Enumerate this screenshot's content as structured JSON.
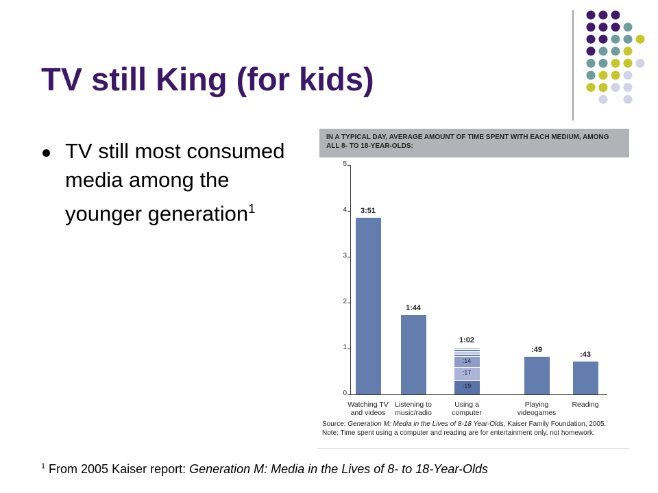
{
  "slide": {
    "title": "TV still King (for kids)",
    "bullet": "TV still most consumed media among the younger generation",
    "bullet_sup": "1",
    "footnote": {
      "sup": "1",
      "text": "From 2005 Kaiser report: ",
      "italic": "Generation M: Media in the Lives of 8- to 18-Year-Olds"
    }
  },
  "chart_data": {
    "type": "bar",
    "title": "IN A TYPICAL DAY, AVERAGE AMOUNT OF TIME SPENT WITH EACH MEDIUM, AMONG ALL 8- TO 18-YEAR-OLDS:",
    "categories": [
      "Watching TV and videos",
      "Listening to music/radio",
      "Using a computer",
      "Playing videogames",
      "Reading"
    ],
    "values": [
      3.85,
      1.733,
      1.033,
      0.817,
      0.717
    ],
    "value_labels": [
      "3:51",
      "1:44",
      "1:02",
      ":49",
      ":43"
    ],
    "color": "#637dae",
    "computer_segments": {
      "values": [
        0.317,
        0.283,
        0.233,
        0.05,
        0.05,
        0.05,
        0.05
      ],
      "value_labels": [
        ":19",
        ":17",
        ":14",
        null,
        null,
        null,
        null
      ],
      "colors": [
        "#5a72a8",
        "#aab5d8",
        "#8d9dca",
        "#637dae",
        "#c2cbe6",
        "#637dae",
        "#c2cbe6"
      ]
    },
    "ylim": [
      0,
      5
    ],
    "yticks": [
      0,
      1,
      2,
      3,
      4,
      5
    ],
    "source": {
      "label": "Source:",
      "title": "Generation M: Media in the Lives of 8-18 Year-Olds",
      "rest": ", Kaiser Family Foundation, 2005."
    },
    "note": "Note: Time spent using a computer and reading are for entertainment only, not homework."
  }
}
